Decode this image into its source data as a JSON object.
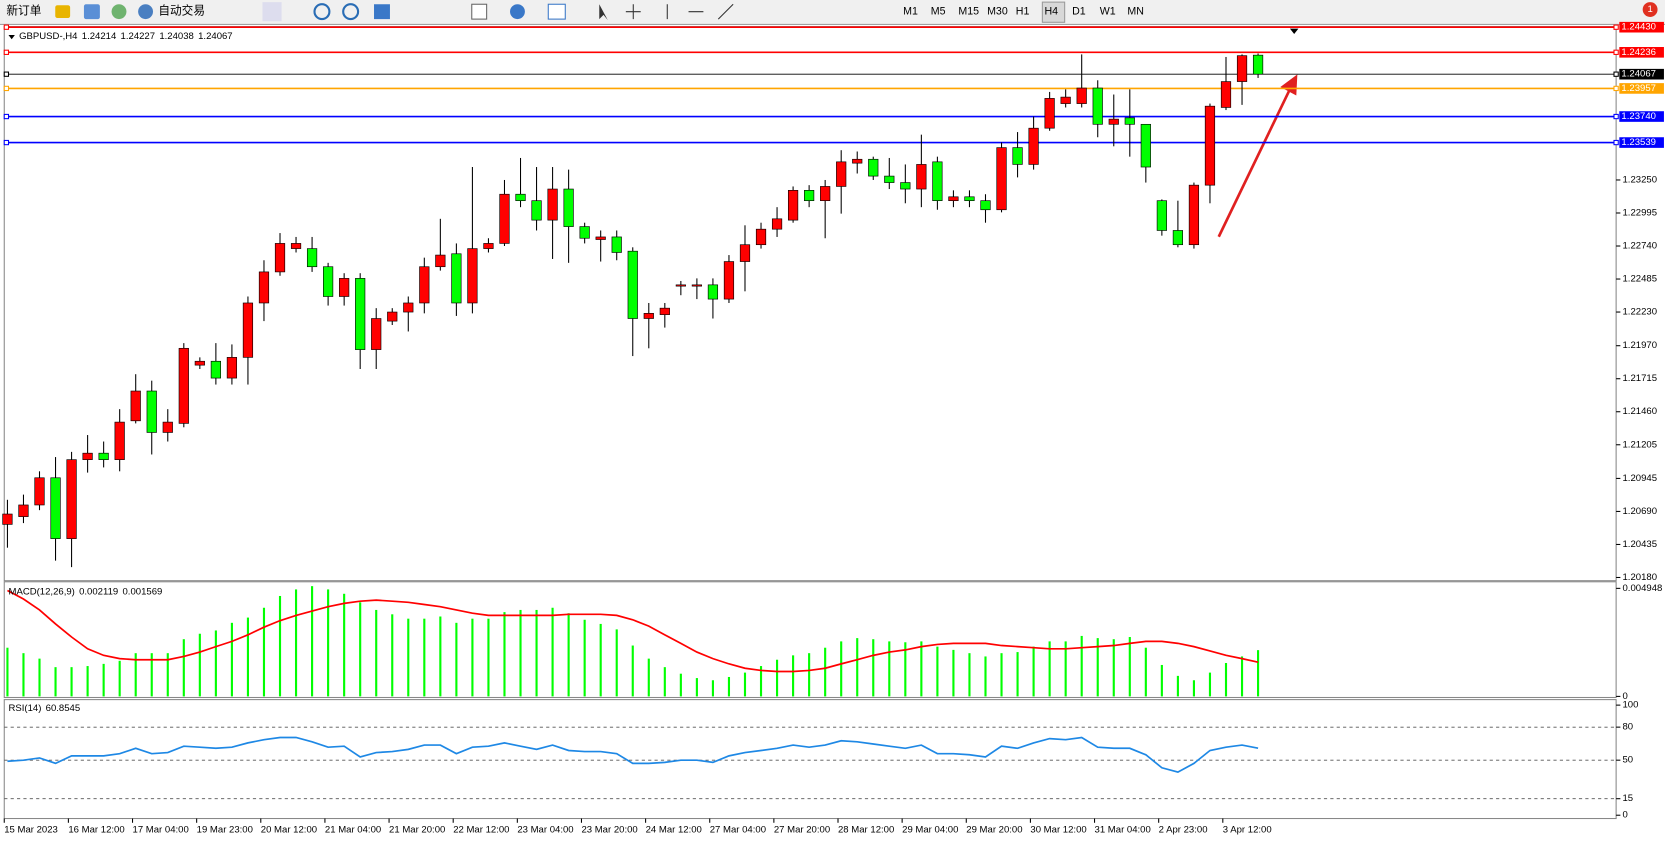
{
  "toolbar": {
    "new_order": "新订单",
    "auto_trading": "自动交易",
    "timeframes": [
      "M1",
      "M5",
      "M15",
      "M30",
      "H1",
      "H4",
      "D1",
      "W1",
      "MN"
    ],
    "notifications": 1
  },
  "chart": {
    "symbol": "GBPUSD-,H4",
    "up_color": "#ff0000",
    "down_color": "#00ff00",
    "ylim": [
      1.20155,
      1.24435
    ],
    "yticks": [
      {
        "value": 1.2325,
        "label": "1.23250"
      },
      1.22995,
      {
        "value": 1.2274,
        "label": "1.22740"
      },
      1.22485,
      {
        "value": 1.2223,
        "label": "1.22230"
      },
      {
        "value": 1.2197,
        "label": "1.21970"
      },
      1.21715,
      {
        "value": 1.2146,
        "label": "1.21460"
      },
      1.21205,
      1.20945,
      {
        "value": 1.2069,
        "label": "1.20690"
      },
      1.20435,
      {
        "value": 1.2018,
        "label": "1.20180"
      }
    ],
    "levels": [
      {
        "value": 1.2443,
        "label": "1.24430",
        "color": "#ff0000"
      },
      {
        "value": 1.24236,
        "label": "1.24236",
        "color": "#ff0000"
      },
      {
        "value": 1.24067,
        "label": "1.24067",
        "color": "#000000"
      },
      {
        "value": 1.23957,
        "label": "1.23957",
        "color": "#ffa500"
      },
      {
        "value": 1.2374,
        "label": "1.23740",
        "color": "#0000ff"
      },
      {
        "value": 1.23539,
        "label": "1.23539",
        "color": "#0000ff"
      }
    ],
    "candles": [
      [
        1.2059,
        1.2078,
        1.2041,
        1.2067
      ],
      [
        1.2065,
        1.2082,
        1.206,
        1.2074
      ],
      [
        1.2074,
        1.21,
        1.207,
        1.2095
      ],
      [
        1.2095,
        1.2111,
        1.2031,
        1.2048
      ],
      [
        1.2048,
        1.2115,
        1.2026,
        1.2109
      ],
      [
        1.2109,
        1.2128,
        1.2099,
        1.2114
      ],
      [
        1.2114,
        1.2123,
        1.2103,
        1.2109
      ],
      [
        1.2109,
        1.2148,
        1.21,
        1.2138
      ],
      [
        1.2139,
        1.2175,
        1.2137,
        1.2162
      ],
      [
        1.2162,
        1.217,
        1.2113,
        1.213
      ],
      [
        1.213,
        1.2148,
        1.2123,
        1.2138
      ],
      [
        1.2137,
        1.2199,
        1.2134,
        1.2195
      ],
      [
        1.2182,
        1.2188,
        1.2179,
        1.2185
      ],
      [
        1.2185,
        1.2199,
        1.2167,
        1.2172
      ],
      [
        1.2172,
        1.2198,
        1.2167,
        1.2188
      ],
      [
        1.2188,
        1.2235,
        1.2167,
        1.223
      ],
      [
        1.223,
        1.2263,
        1.2216,
        1.2254
      ],
      [
        1.2254,
        1.2284,
        1.2251,
        1.2276
      ],
      [
        1.2272,
        1.2281,
        1.2269,
        1.2276
      ],
      [
        1.2272,
        1.2281,
        1.2254,
        1.2258
      ],
      [
        1.2258,
        1.2261,
        1.2228,
        1.2235
      ],
      [
        1.2235,
        1.2253,
        1.2228,
        1.2249
      ],
      [
        1.2249,
        1.2253,
        1.2179,
        1.2194
      ],
      [
        1.2194,
        1.2226,
        1.2179,
        1.2218
      ],
      [
        1.2216,
        1.2226,
        1.2213,
        1.2223
      ],
      [
        1.2223,
        1.2235,
        1.2208,
        1.223
      ],
      [
        1.223,
        1.2265,
        1.2222,
        1.2258
      ],
      [
        1.2258,
        1.2295,
        1.2255,
        1.2267
      ],
      [
        1.2268,
        1.2276,
        1.222,
        1.223
      ],
      [
        1.223,
        1.2335,
        1.2222,
        1.2272
      ],
      [
        1.2272,
        1.228,
        1.2269,
        1.2276
      ],
      [
        1.2276,
        1.2325,
        1.2274,
        1.2314
      ],
      [
        1.2314,
        1.2342,
        1.2304,
        1.2309
      ],
      [
        1.2309,
        1.2335,
        1.2286,
        1.2294
      ],
      [
        1.2294,
        1.2335,
        1.2264,
        1.2318
      ],
      [
        1.2318,
        1.2333,
        1.2261,
        1.2289
      ],
      [
        1.2289,
        1.2292,
        1.2276,
        1.228
      ],
      [
        1.2279,
        1.2286,
        1.2262,
        1.2281
      ],
      [
        1.2281,
        1.2286,
        1.2263,
        1.2269
      ],
      [
        1.227,
        1.2273,
        1.2189,
        1.2218
      ],
      [
        1.2218,
        1.223,
        1.2195,
        1.2222
      ],
      [
        1.2221,
        1.223,
        1.2211,
        1.2226
      ],
      [
        1.2243,
        1.2247,
        1.2236,
        1.2244
      ],
      [
        1.2243,
        1.2249,
        1.2233,
        1.2244
      ],
      [
        1.2244,
        1.2249,
        1.2218,
        1.2233
      ],
      [
        1.2233,
        1.2267,
        1.223,
        1.2262
      ],
      [
        1.2262,
        1.229,
        1.2239,
        1.2275
      ],
      [
        1.2275,
        1.2292,
        1.2272,
        1.2287
      ],
      [
        1.2287,
        1.2304,
        1.2281,
        1.2295
      ],
      [
        1.2294,
        1.232,
        1.2292,
        1.2317
      ],
      [
        1.2317,
        1.2321,
        1.2304,
        1.2309
      ],
      [
        1.2309,
        1.2325,
        1.228,
        1.232
      ],
      [
        1.232,
        1.2348,
        1.2299,
        1.2339
      ],
      [
        1.2338,
        1.2347,
        1.233,
        1.2341
      ],
      [
        1.2341,
        1.2343,
        1.2325,
        1.2328
      ],
      [
        1.2328,
        1.2342,
        1.2318,
        1.2323
      ],
      [
        1.2323,
        1.2337,
        1.2307,
        1.2318
      ],
      [
        1.2318,
        1.236,
        1.2304,
        1.2337
      ],
      [
        1.2339,
        1.2343,
        1.2302,
        1.2309
      ],
      [
        1.2309,
        1.2317,
        1.2304,
        1.2312
      ],
      [
        1.2312,
        1.2317,
        1.2304,
        1.2309
      ],
      [
        1.2309,
        1.2314,
        1.2292,
        1.2302
      ],
      [
        1.2302,
        1.2354,
        1.23,
        1.235
      ],
      [
        1.235,
        1.2362,
        1.2327,
        1.2337
      ],
      [
        1.2337,
        1.2374,
        1.2333,
        1.2365
      ],
      [
        1.2365,
        1.2393,
        1.2363,
        1.2388
      ],
      [
        1.2384,
        1.2395,
        1.2381,
        1.2389
      ],
      [
        1.2384,
        1.2422,
        1.2381,
        1.2396
      ],
      [
        1.2396,
        1.2402,
        1.2358,
        1.2368
      ],
      [
        1.2368,
        1.2391,
        1.2351,
        1.2372
      ],
      [
        1.2373,
        1.2395,
        1.2343,
        1.2368
      ],
      [
        1.2368,
        1.2368,
        1.2323,
        1.2335
      ],
      [
        1.2309,
        1.231,
        1.2282,
        1.2286
      ],
      [
        1.2286,
        1.2309,
        1.2273,
        1.2275
      ],
      [
        1.2275,
        1.2323,
        1.2272,
        1.2321
      ],
      [
        1.2321,
        1.2384,
        1.2307,
        1.2382
      ],
      [
        1.2381,
        1.242,
        1.2379,
        1.2401
      ],
      [
        1.2401,
        1.2422,
        1.2383,
        1.2421
      ],
      [
        1.24214,
        1.24227,
        1.24038,
        1.24067
      ]
    ],
    "time_labels": [
      "15 Mar 2023",
      "16 Mar 12:00",
      "17 Mar 04:00",
      "19 Mar 23:00",
      "20 Mar 12:00",
      "21 Mar 04:00",
      "21 Mar 20:00",
      "22 Mar 12:00",
      "23 Mar 04:00",
      "23 Mar 20:00",
      "24 Mar 12:00",
      "27 Mar 04:00",
      "27 Mar 20:00",
      "28 Mar 12:00",
      "29 Mar 04:00",
      "29 Mar 20:00",
      "30 Mar 12:00",
      "31 Mar 04:00",
      "2 Apr 23:00",
      "3 Apr 12:00"
    ]
  },
  "macd": {
    "name": "MACD(12,26,9)",
    "hist_color": "#00ff00",
    "signal_color": "#ff0000",
    "ylim": [
      -5e-05,
      0.00525
    ],
    "yticks": [
      0.004948,
      0
    ],
    "histogram": [
      0.00223,
      0.00198,
      0.00173,
      0.00134,
      0.00134,
      0.00139,
      0.00149,
      0.00163,
      0.00198,
      0.00198,
      0.00198,
      0.00262,
      0.00287,
      0.00302,
      0.00337,
      0.00361,
      0.00406,
      0.0046,
      0.0049,
      0.00505,
      0.0049,
      0.0047,
      0.00431,
      0.00396,
      0.00376,
      0.00356,
      0.00356,
      0.00366,
      0.00337,
      0.00356,
      0.00356,
      0.00386,
      0.00396,
      0.00396,
      0.00406,
      0.00381,
      0.00351,
      0.00332,
      0.00307,
      0.00233,
      0.00173,
      0.00134,
      0.00104,
      0.00084,
      0.00074,
      0.00089,
      0.00109,
      0.00139,
      0.00168,
      0.00188,
      0.00198,
      0.00223,
      0.00252,
      0.00267,
      0.00262,
      0.00252,
      0.00248,
      0.00252,
      0.00228,
      0.00213,
      0.00198,
      0.00183,
      0.00198,
      0.00203,
      0.00228,
      0.00252,
      0.00252,
      0.00277,
      0.00267,
      0.00262,
      0.00272,
      0.00223,
      0.00144,
      0.00094,
      0.00074,
      0.00109,
      0.00153,
      0.00183,
      0.002119
    ],
    "signal": [
      0.00485,
      0.00446,
      0.00396,
      0.00332,
      0.00272,
      0.00218,
      0.00188,
      0.00173,
      0.00168,
      0.00168,
      0.00168,
      0.00183,
      0.00203,
      0.00228,
      0.00252,
      0.00282,
      0.00317,
      0.00347,
      0.00371,
      0.00391,
      0.00411,
      0.00426,
      0.00436,
      0.00441,
      0.00436,
      0.00431,
      0.00421,
      0.00411,
      0.00396,
      0.00381,
      0.00371,
      0.00371,
      0.00371,
      0.00371,
      0.00371,
      0.00376,
      0.00376,
      0.00376,
      0.00371,
      0.00351,
      0.00322,
      0.00282,
      0.00243,
      0.00203,
      0.00173,
      0.00149,
      0.00129,
      0.00119,
      0.00114,
      0.00114,
      0.00119,
      0.00129,
      0.00149,
      0.00168,
      0.00188,
      0.00203,
      0.00213,
      0.00228,
      0.00238,
      0.00243,
      0.00243,
      0.00243,
      0.00233,
      0.00228,
      0.00223,
      0.00218,
      0.00218,
      0.00223,
      0.00228,
      0.00233,
      0.00243,
      0.00252,
      0.00252,
      0.00243,
      0.00228,
      0.00208,
      0.00188,
      0.00173,
      0.001569
    ]
  },
  "rsi": {
    "name": "RSI(14)",
    "color": "#1e88e5",
    "ylim": [
      -3,
      105
    ],
    "yticks": [
      100,
      80,
      50,
      15,
      0
    ],
    "levels": [
      80,
      50,
      15
    ],
    "values": [
      49.0,
      50.0,
      52.0,
      47.1,
      53.9,
      53.9,
      53.9,
      55.9,
      60.8,
      55.9,
      56.9,
      62.7,
      61.8,
      60.8,
      61.8,
      65.7,
      68.6,
      70.6,
      70.6,
      66.7,
      61.8,
      62.7,
      52.9,
      56.9,
      57.8,
      59.8,
      63.7,
      63.7,
      55.9,
      61.8,
      62.7,
      65.7,
      62.7,
      59.8,
      63.7,
      58.8,
      57.8,
      57.8,
      55.9,
      47.1,
      47.1,
      48.0,
      50.0,
      50.0,
      48.0,
      53.9,
      56.9,
      58.8,
      60.8,
      63.7,
      61.8,
      63.7,
      67.6,
      66.7,
      64.7,
      62.7,
      60.8,
      63.7,
      55.9,
      55.9,
      54.9,
      52.9,
      62.7,
      60.8,
      65.7,
      69.6,
      68.6,
      70.6,
      61.8,
      60.8,
      60.8,
      54.9,
      43.1,
      39.2,
      47.1,
      58.8,
      61.8,
      63.7,
      60.8545
    ]
  }
}
